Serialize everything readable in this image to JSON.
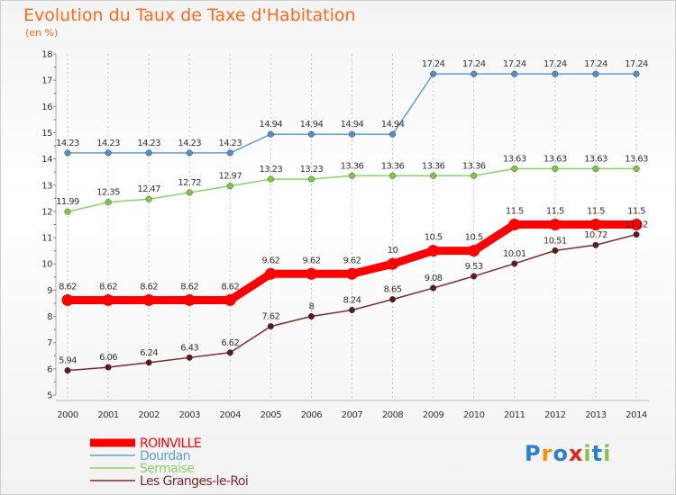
{
  "header": {
    "title": "Evolution du Taux de Taxe d'Habitation",
    "unit": "(en %)"
  },
  "logo": {
    "text": "Proxiti",
    "colors": [
      "#2b7fd4",
      "#f29400",
      "#2b7fd4",
      "#e2231a",
      "#8bc34a",
      "#2b7fd4",
      "#8bc34a"
    ]
  },
  "chart_data": {
    "type": "line",
    "x": [
      2000,
      2001,
      2002,
      2003,
      2004,
      2005,
      2006,
      2007,
      2008,
      2009,
      2010,
      2011,
      2012,
      2013,
      2014
    ],
    "ylim": [
      5,
      18
    ],
    "yticks": [
      5,
      6,
      7,
      8,
      9,
      10,
      11,
      12,
      13,
      14,
      15,
      16,
      17,
      18
    ],
    "grid": "dashed-vertical",
    "legend": "bottom-left",
    "series": [
      {
        "name": "ROINVILLE",
        "color": "#ff0000",
        "marker": "#ff0000",
        "values": [
          8.62,
          8.62,
          8.62,
          8.62,
          8.62,
          9.62,
          9.62,
          9.62,
          10,
          10.5,
          10.5,
          11.5,
          11.5,
          11.5,
          11.5
        ],
        "labels": [
          "8.62",
          "8.62",
          "8.62",
          "8.62",
          "8.62",
          "9.62",
          "9.62",
          "9.62",
          "10",
          "10.5",
          "10.5",
          "11.5",
          "11.5",
          "11.5",
          "11.5"
        ]
      },
      {
        "name": "Dourdan",
        "color": "#5f9ed6",
        "marker": "#4f8fcf",
        "values": [
          14.23,
          14.23,
          14.23,
          14.23,
          14.23,
          14.94,
          14.94,
          14.94,
          14.94,
          17.24,
          17.24,
          17.24,
          17.24,
          17.24,
          17.24
        ],
        "labels": [
          "14.23",
          "14.23",
          "14.23",
          "14.23",
          "14.23",
          "14.94",
          "14.94",
          "14.94",
          "14.94",
          "17.24",
          "17.24",
          "17.24",
          "17.24",
          "17.24",
          "17.24"
        ]
      },
      {
        "name": "Sermaise",
        "color": "#8bd168",
        "marker": "#7ccb3a",
        "values": [
          11.99,
          12.35,
          12.47,
          12.72,
          12.97,
          13.23,
          13.23,
          13.36,
          13.36,
          13.36,
          13.36,
          13.63,
          13.63,
          13.63,
          13.63
        ],
        "labels": [
          "11.99",
          "12.35",
          "12.47",
          "12.72",
          "12.97",
          "13.23",
          "13.23",
          "13.36",
          "13.36",
          "13.36",
          "13.36",
          "13.63",
          "13.63",
          "13.63",
          "13.63"
        ]
      },
      {
        "name": "Les Granges-le-Roi",
        "color": "#7a2a2e",
        "marker": "#5c1a1e",
        "values": [
          5.94,
          6.06,
          6.24,
          6.43,
          6.62,
          7.62,
          8,
          8.24,
          8.65,
          9.08,
          9.53,
          10.01,
          10.51,
          10.72,
          11.12
        ],
        "labels": [
          "5.94",
          "6.06",
          "6.24",
          "6.43",
          "6.62",
          "7.62",
          "8",
          "8.24",
          "8.65",
          "9.08",
          "9.53",
          "10.01",
          "10.51",
          "10.72",
          "11.12"
        ]
      }
    ]
  }
}
